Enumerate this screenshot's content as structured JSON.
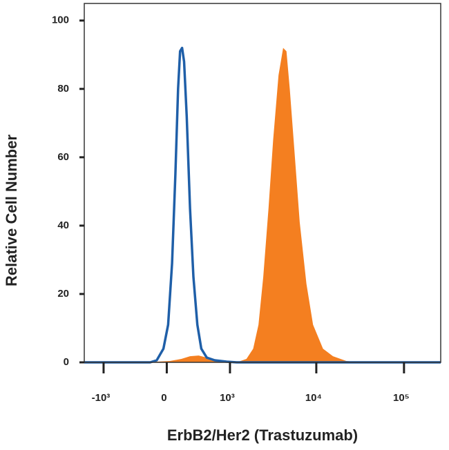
{
  "chart_data": {
    "type": "histogram-overlay",
    "xlabel": "ErbB2/Her2 (Trastuzumab)",
    "ylabel": "Relative Cell Number",
    "xscale": "biexponential",
    "xlim": [
      -1700,
      262144
    ],
    "ylim": [
      0,
      105
    ],
    "xticks": [
      {
        "value": -1000,
        "label": "-10³"
      },
      0,
      {
        "value": 1000,
        "label": "10³"
      },
      {
        "value": 10000,
        "label": "10⁴"
      },
      {
        "value": 100000,
        "label": "10⁵"
      }
    ],
    "yticks": [
      0,
      20,
      40,
      60,
      80,
      100
    ],
    "series": [
      {
        "color": "#f47f20",
        "fill": true,
        "x": [
          -1700,
          -105,
          35,
          155,
          256,
          371,
          495,
          677,
          909,
          1205,
          1575,
          1888,
          2176,
          2469,
          2840,
          3211,
          3697,
          4179,
          4562,
          4981,
          5629,
          6474,
          7710,
          9184,
          11930,
          15484,
          21962,
          31166,
          262144
        ],
        "values": [
          0,
          0.2,
          0.4,
          1,
          1.8,
          2,
          1.4,
          0.6,
          0.2,
          0,
          1,
          4,
          11,
          25,
          45,
          65,
          84,
          92,
          91,
          80,
          62,
          41,
          23,
          11,
          4,
          1.8,
          0.4,
          0,
          0
        ]
      },
      {
        "color": "#1f5fa8",
        "fill": false,
        "x": [
          -1700,
          -178,
          -105,
          -35,
          14,
          55,
          90,
          119,
          141,
          163,
          186,
          216,
          256,
          299,
          352,
          409,
          495,
          638,
          909,
          1205,
          262144
        ],
        "values": [
          0,
          0,
          0.6,
          4,
          11,
          29,
          55,
          80,
          91,
          92,
          88,
          72,
          45,
          25,
          11,
          4,
          1.4,
          0.6,
          0.2,
          0,
          0
        ]
      }
    ]
  }
}
